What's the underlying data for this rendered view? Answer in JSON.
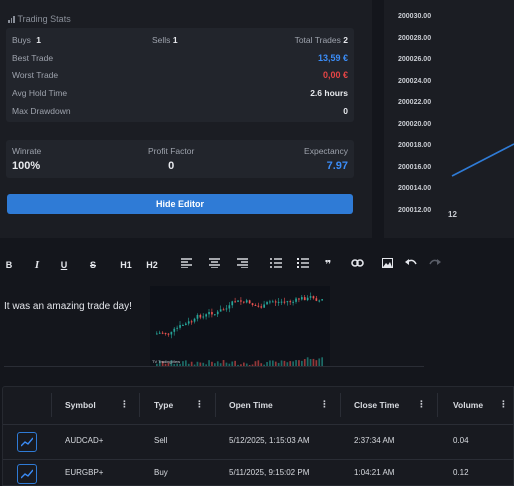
{
  "stats": {
    "heading": "Trading Stats",
    "buys_label": "Buys",
    "buys_value": "1",
    "sells_label": "Sells",
    "sells_value": "1",
    "total_label": "Total Trades",
    "total_value": "2",
    "rows": [
      {
        "label": "Best Trade",
        "value": "13,59 €"
      },
      {
        "label": "Worst Trade",
        "value": "0,00 €"
      },
      {
        "label": "Avg Hold Time",
        "value": "2.6 hours"
      },
      {
        "label": "Max Drawdown",
        "value": "0"
      }
    ],
    "metrics": [
      {
        "label": "Winrate",
        "value": "100%"
      },
      {
        "label": "Profit Factor",
        "value": "0"
      },
      {
        "label": "Expectancy",
        "value": "7.97"
      }
    ],
    "hide_editor": "Hide Editor"
  },
  "chart": {
    "y_ticks": [
      "200030.00",
      "200028.00",
      "200026.00",
      "200024.00",
      "200022.00",
      "200020.00",
      "200018.00",
      "200016.00",
      "200014.00",
      "200012.00"
    ],
    "x_tick": "12",
    "line_color": "#2f7bd6"
  },
  "toolbar": {
    "bold": "B",
    "italic": "I",
    "underline": "U",
    "strike": "S",
    "h1": "H1",
    "h2": "H2"
  },
  "editor": {
    "text": "It was an amazing trade day!",
    "thumb_caption": "TV TradingView"
  },
  "table": {
    "columns": [
      "Symbol",
      "Type",
      "Open Time",
      "Close Time",
      "Volume"
    ],
    "rows": [
      {
        "symbol": "AUDCAD+",
        "type": "Sell",
        "open": "5/12/2025, 1:15:03 AM",
        "close": "2:37:34 AM",
        "volume": "0.04"
      },
      {
        "symbol": "EURGBP+",
        "type": "Buy",
        "open": "5/11/2025, 9:15:02 PM",
        "close": "1:04:21 AM",
        "volume": "0.12"
      }
    ]
  }
}
